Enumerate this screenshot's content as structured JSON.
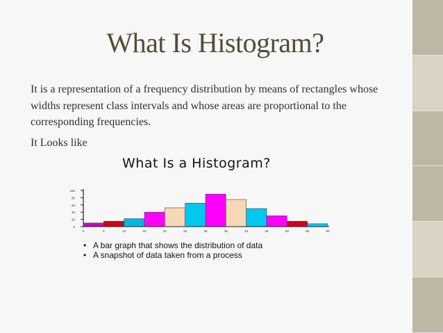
{
  "slide": {
    "title": "What Is Histogram?",
    "paragraph": "It is a representation of a frequency distribution by means of rectangles whose widths represent class intervals and whose areas are proportional to the corresponding frequencies.",
    "followup": "It Looks like"
  },
  "image": {
    "title": "What Is a Histogram?",
    "bullets": [
      "A bar graph that shows the distribution of data",
      "A snapshot of data taken from a process"
    ]
  },
  "chart_data": {
    "type": "bar",
    "title": "What Is a Histogram?",
    "x_ticks": [
      "0",
      "5",
      "10",
      "15",
      "20",
      "25",
      "30",
      "35",
      "40",
      "45",
      "50",
      "55",
      "60"
    ],
    "y_ticks": [
      "0",
      "20",
      "40",
      "60",
      "80",
      "100"
    ],
    "ylim": [
      0,
      100
    ],
    "bins": [
      {
        "x0": 0,
        "x1": 5,
        "value": 10,
        "color": "#cc00cc"
      },
      {
        "x0": 5,
        "x1": 10,
        "value": 15,
        "color": "#d4001a"
      },
      {
        "x0": 10,
        "x1": 15,
        "value": 22,
        "color": "#00b8e6"
      },
      {
        "x0": 15,
        "x1": 20,
        "value": 40,
        "color": "#ff00ff"
      },
      {
        "x0": 20,
        "x1": 25,
        "value": 52,
        "color": "#f7d7b5"
      },
      {
        "x0": 25,
        "x1": 30,
        "value": 65,
        "color": "#00c8f0"
      },
      {
        "x0": 30,
        "x1": 35,
        "value": 90,
        "color": "#ff00ff"
      },
      {
        "x0": 35,
        "x1": 40,
        "value": 75,
        "color": "#f7d7b5"
      },
      {
        "x0": 40,
        "x1": 45,
        "value": 50,
        "color": "#00c8f0"
      },
      {
        "x0": 45,
        "x1": 50,
        "value": 30,
        "color": "#ff00ff"
      },
      {
        "x0": 50,
        "x1": 55,
        "value": 15,
        "color": "#d4001a"
      },
      {
        "x0": 55,
        "x1": 60,
        "value": 8,
        "color": "#00c8f0"
      }
    ]
  }
}
